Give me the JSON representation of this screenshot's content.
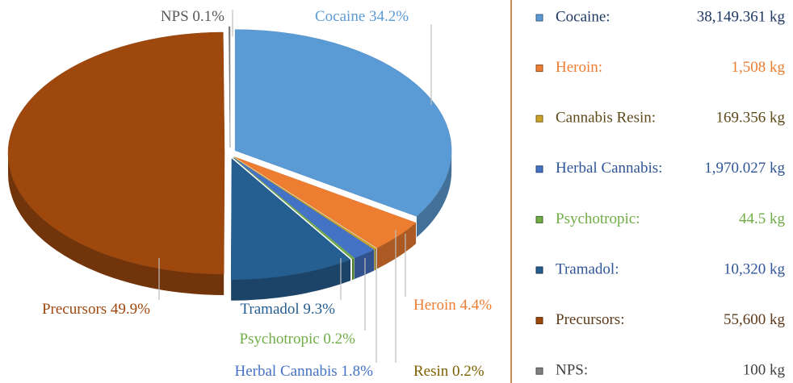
{
  "chart_data": {
    "type": "pie",
    "categories": [
      "Cocaine",
      "Heroin",
      "Resin",
      "Herbal Cannabis",
      "Psychotropic",
      "Tramadol",
      "Precursors",
      "NPS"
    ],
    "values": [
      34.2,
      4.4,
      0.2,
      1.8,
      0.2,
      9.3,
      49.9,
      0.1
    ],
    "value_labels": [
      "34.2%",
      "4.4%",
      "0.2%",
      "1.8%",
      "0.2%",
      "9.3%",
      "49.9%",
      "0.1%"
    ],
    "colors": [
      "#5b9bd5",
      "#ed7d31",
      "#c9a227",
      "#4472c4",
      "#70ad47",
      "#255e91",
      "#9e480e",
      "#7f7f7f"
    ],
    "label_colors": [
      "#5b9bd5",
      "#ed7d31",
      "#7f6000",
      "#4472c4",
      "#70ad47",
      "#255e91",
      "#9e480e",
      "#595959"
    ],
    "legend": [
      {
        "label": "Cocaine:",
        "amount": "38,149.361 kg",
        "color": "#1f3864"
      },
      {
        "label": "Heroin:",
        "amount": "1,508 kg",
        "color": "#ed7d31"
      },
      {
        "label": "Cannabis Resin:",
        "amount": "169.356 kg",
        "color": "#5c4a1a"
      },
      {
        "label": "Herbal Cannabis:",
        "amount": "1,970.027 kg",
        "color": "#2f5597"
      },
      {
        "label": "Psychotropic:",
        "amount": "44.5 kg",
        "color": "#70ad47"
      },
      {
        "label": "Tramadol:",
        "amount": "10,320 kg",
        "color": "#2f5597"
      },
      {
        "label": "Precursors:",
        "amount": "55,600 kg",
        "color": "#5c3a1a"
      },
      {
        "label": "NPS:",
        "amount": "100 kg",
        "color": "#404040"
      }
    ],
    "legend_marker_colors": [
      "#5b9bd5",
      "#ed7d31",
      "#c9a227",
      "#4472c4",
      "#70ad47",
      "#255e91",
      "#9e480e",
      "#7f7f7f"
    ]
  }
}
